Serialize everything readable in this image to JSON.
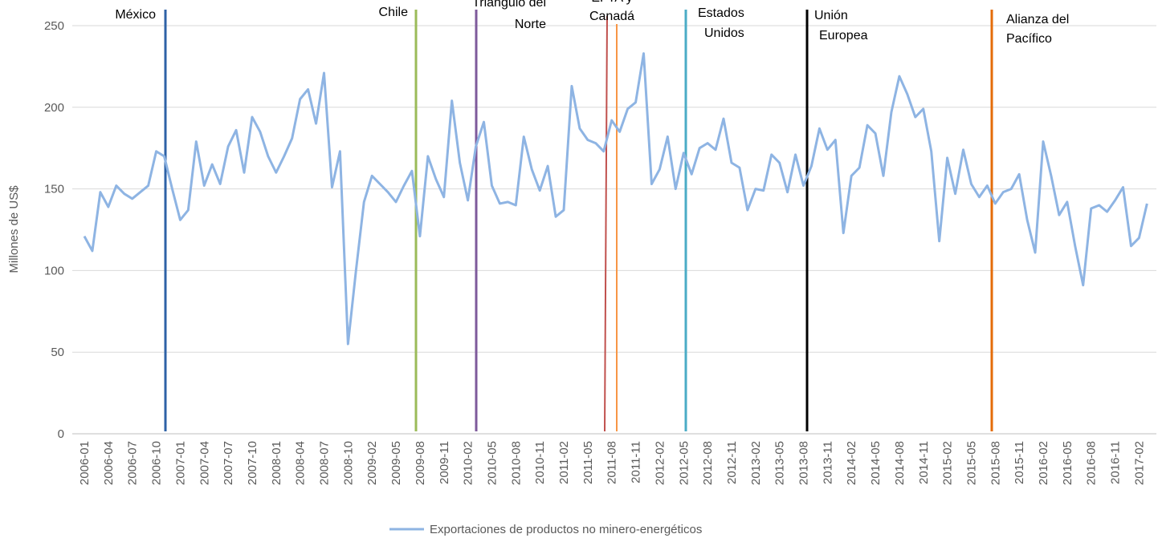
{
  "chart_data": {
    "type": "line",
    "ylabel": "Millones de US$",
    "categories": [
      "2006-01",
      null,
      null,
      "2006-04",
      null,
      null,
      "2006-07",
      null,
      null,
      "2006-10",
      null,
      null,
      "2007-01",
      null,
      null,
      "2007-04",
      null,
      null,
      "2007-07",
      null,
      null,
      "2007-10",
      null,
      null,
      "2008-01",
      null,
      null,
      "2008-04",
      null,
      null,
      "2008-07",
      null,
      null,
      "2008-10",
      null,
      null,
      "2009-02",
      null,
      null,
      "2009-05",
      null,
      null,
      "2009-08",
      null,
      null,
      "2009-11",
      null,
      null,
      "2010-02",
      null,
      null,
      "2010-05",
      null,
      null,
      "2010-08",
      null,
      null,
      "2010-11",
      null,
      null,
      "2011-02",
      null,
      null,
      "2011-05",
      null,
      null,
      "2011-08",
      null,
      null,
      "2011-11",
      null,
      null,
      "2012-02",
      null,
      null,
      "2012-05",
      null,
      null,
      "2012-08",
      null,
      null,
      "2012-11",
      null,
      null,
      "2013-02",
      null,
      null,
      "2013-05",
      null,
      null,
      "2013-08",
      null,
      null,
      "2013-11",
      null,
      null,
      "2014-02",
      null,
      null,
      "2014-05",
      null,
      null,
      "2014-08",
      null,
      null,
      "2014-11",
      null,
      null,
      "2015-02",
      null,
      null,
      "2015-05",
      null,
      null,
      "2015-08",
      null,
      null,
      "2015-11",
      null,
      null,
      "2016-02",
      null,
      null,
      "2016-05",
      null,
      null,
      "2016-08",
      null,
      null,
      "2016-11",
      null,
      null,
      "2017-02",
      null
    ],
    "series": [
      {
        "name": "Exportaciones de productos no minero-energéticos",
        "color": "#8eb4e3",
        "values": [
          121,
          112,
          148,
          139,
          152,
          147,
          144,
          148,
          152,
          173,
          170,
          150,
          131,
          137,
          179,
          152,
          165,
          153,
          176,
          186,
          160,
          194,
          185,
          170,
          160,
          170,
          181,
          205,
          211,
          190,
          221,
          151,
          173,
          55,
          100,
          142,
          158,
          153,
          148,
          142,
          152,
          161,
          121,
          170,
          156,
          145,
          204,
          166,
          143,
          176,
          191,
          152,
          141,
          142,
          140,
          182,
          162,
          149,
          164,
          133,
          137,
          213,
          187,
          180,
          178,
          173,
          192,
          185,
          199,
          203,
          233,
          153,
          162,
          182,
          150,
          172,
          159,
          175,
          178,
          174,
          193,
          166,
          163,
          137,
          150,
          149,
          171,
          166,
          148,
          171,
          152,
          164,
          187,
          174,
          180,
          123,
          158,
          163,
          189,
          184,
          158,
          197,
          219,
          208,
          194,
          199,
          173,
          118,
          169,
          147,
          174,
          153,
          145,
          152,
          141,
          148,
          150,
          159,
          131,
          111,
          179,
          158,
          134,
          142,
          115,
          91,
          138,
          140,
          136,
          143,
          151,
          115,
          120,
          141
        ]
      }
    ],
    "ylim": [
      0,
      250
    ],
    "yticks": [
      0,
      50,
      100,
      150,
      200,
      250
    ],
    "grid": true,
    "legend": "bottom",
    "annotations": [
      {
        "lines": [
          "México"
        ],
        "color": "#2e62a6"
      },
      {
        "lines": [
          "Chile"
        ],
        "color": "#9bbb59"
      },
      {
        "lines": [
          "Triángulo del",
          "Norte"
        ],
        "color": "#7e5a9b"
      },
      {
        "lines": [
          "EFTA y",
          "Canadá"
        ],
        "color": "#c0504d"
      },
      {
        "lines": [
          "Estados",
          "Unidos"
        ],
        "color": "#4bacc6"
      },
      {
        "lines": [
          "Unión",
          "Europea"
        ],
        "color": "#000000"
      },
      {
        "lines": [
          "Alianza del",
          "Pacífico"
        ],
        "color": "#e46c0a"
      }
    ]
  }
}
